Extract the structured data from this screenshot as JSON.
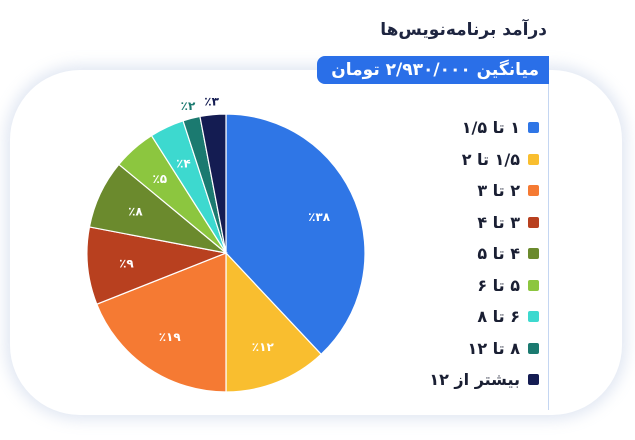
{
  "chart_data": {
    "type": "pie",
    "title": "درآمد برنامه‌نویس‌ها",
    "subtitle": "میانگین ۲/۹۳۰/۰۰۰ تومان",
    "slices": [
      {
        "label": "۱ تا ۱/۵",
        "value": 38,
        "value_label": "٪۳۸",
        "color": "#2f76e6",
        "label_color": "#ffffff"
      },
      {
        "label": "۱/۵ تا ۲",
        "value": 12,
        "value_label": "٪۱۲",
        "color": "#f9be2f",
        "label_color": "#ffffff"
      },
      {
        "label": "۲ تا ۳",
        "value": 19,
        "value_label": "٪۱۹",
        "color": "#f57a33",
        "label_color": "#ffffff"
      },
      {
        "label": "۳ تا ۴",
        "value": 9,
        "value_label": "٪۹",
        "color": "#b8401f",
        "label_color": "#ffffff"
      },
      {
        "label": "۴ تا ۵",
        "value": 8,
        "value_label": "٪۸",
        "color": "#6b8a2d",
        "label_color": "#ffffff"
      },
      {
        "label": "۵ تا ۶",
        "value": 5,
        "value_label": "٪۵",
        "color": "#8cc63f",
        "label_color": "#ffffff"
      },
      {
        "label": "۶ تا ۸",
        "value": 4,
        "value_label": "٪۴",
        "color": "#3dd9cf",
        "label_color": "#ffffff"
      },
      {
        "label": "۸ تا ۱۲",
        "value": 2,
        "value_label": "٪۲",
        "color": "#1b7a70",
        "label_color": "#1b7a70"
      },
      {
        "label": "بیشتر از ۱۲",
        "value": 3,
        "value_label": "٪۳",
        "color": "#141c52",
        "label_color": "#141c52"
      }
    ],
    "legend_position": "right"
  }
}
